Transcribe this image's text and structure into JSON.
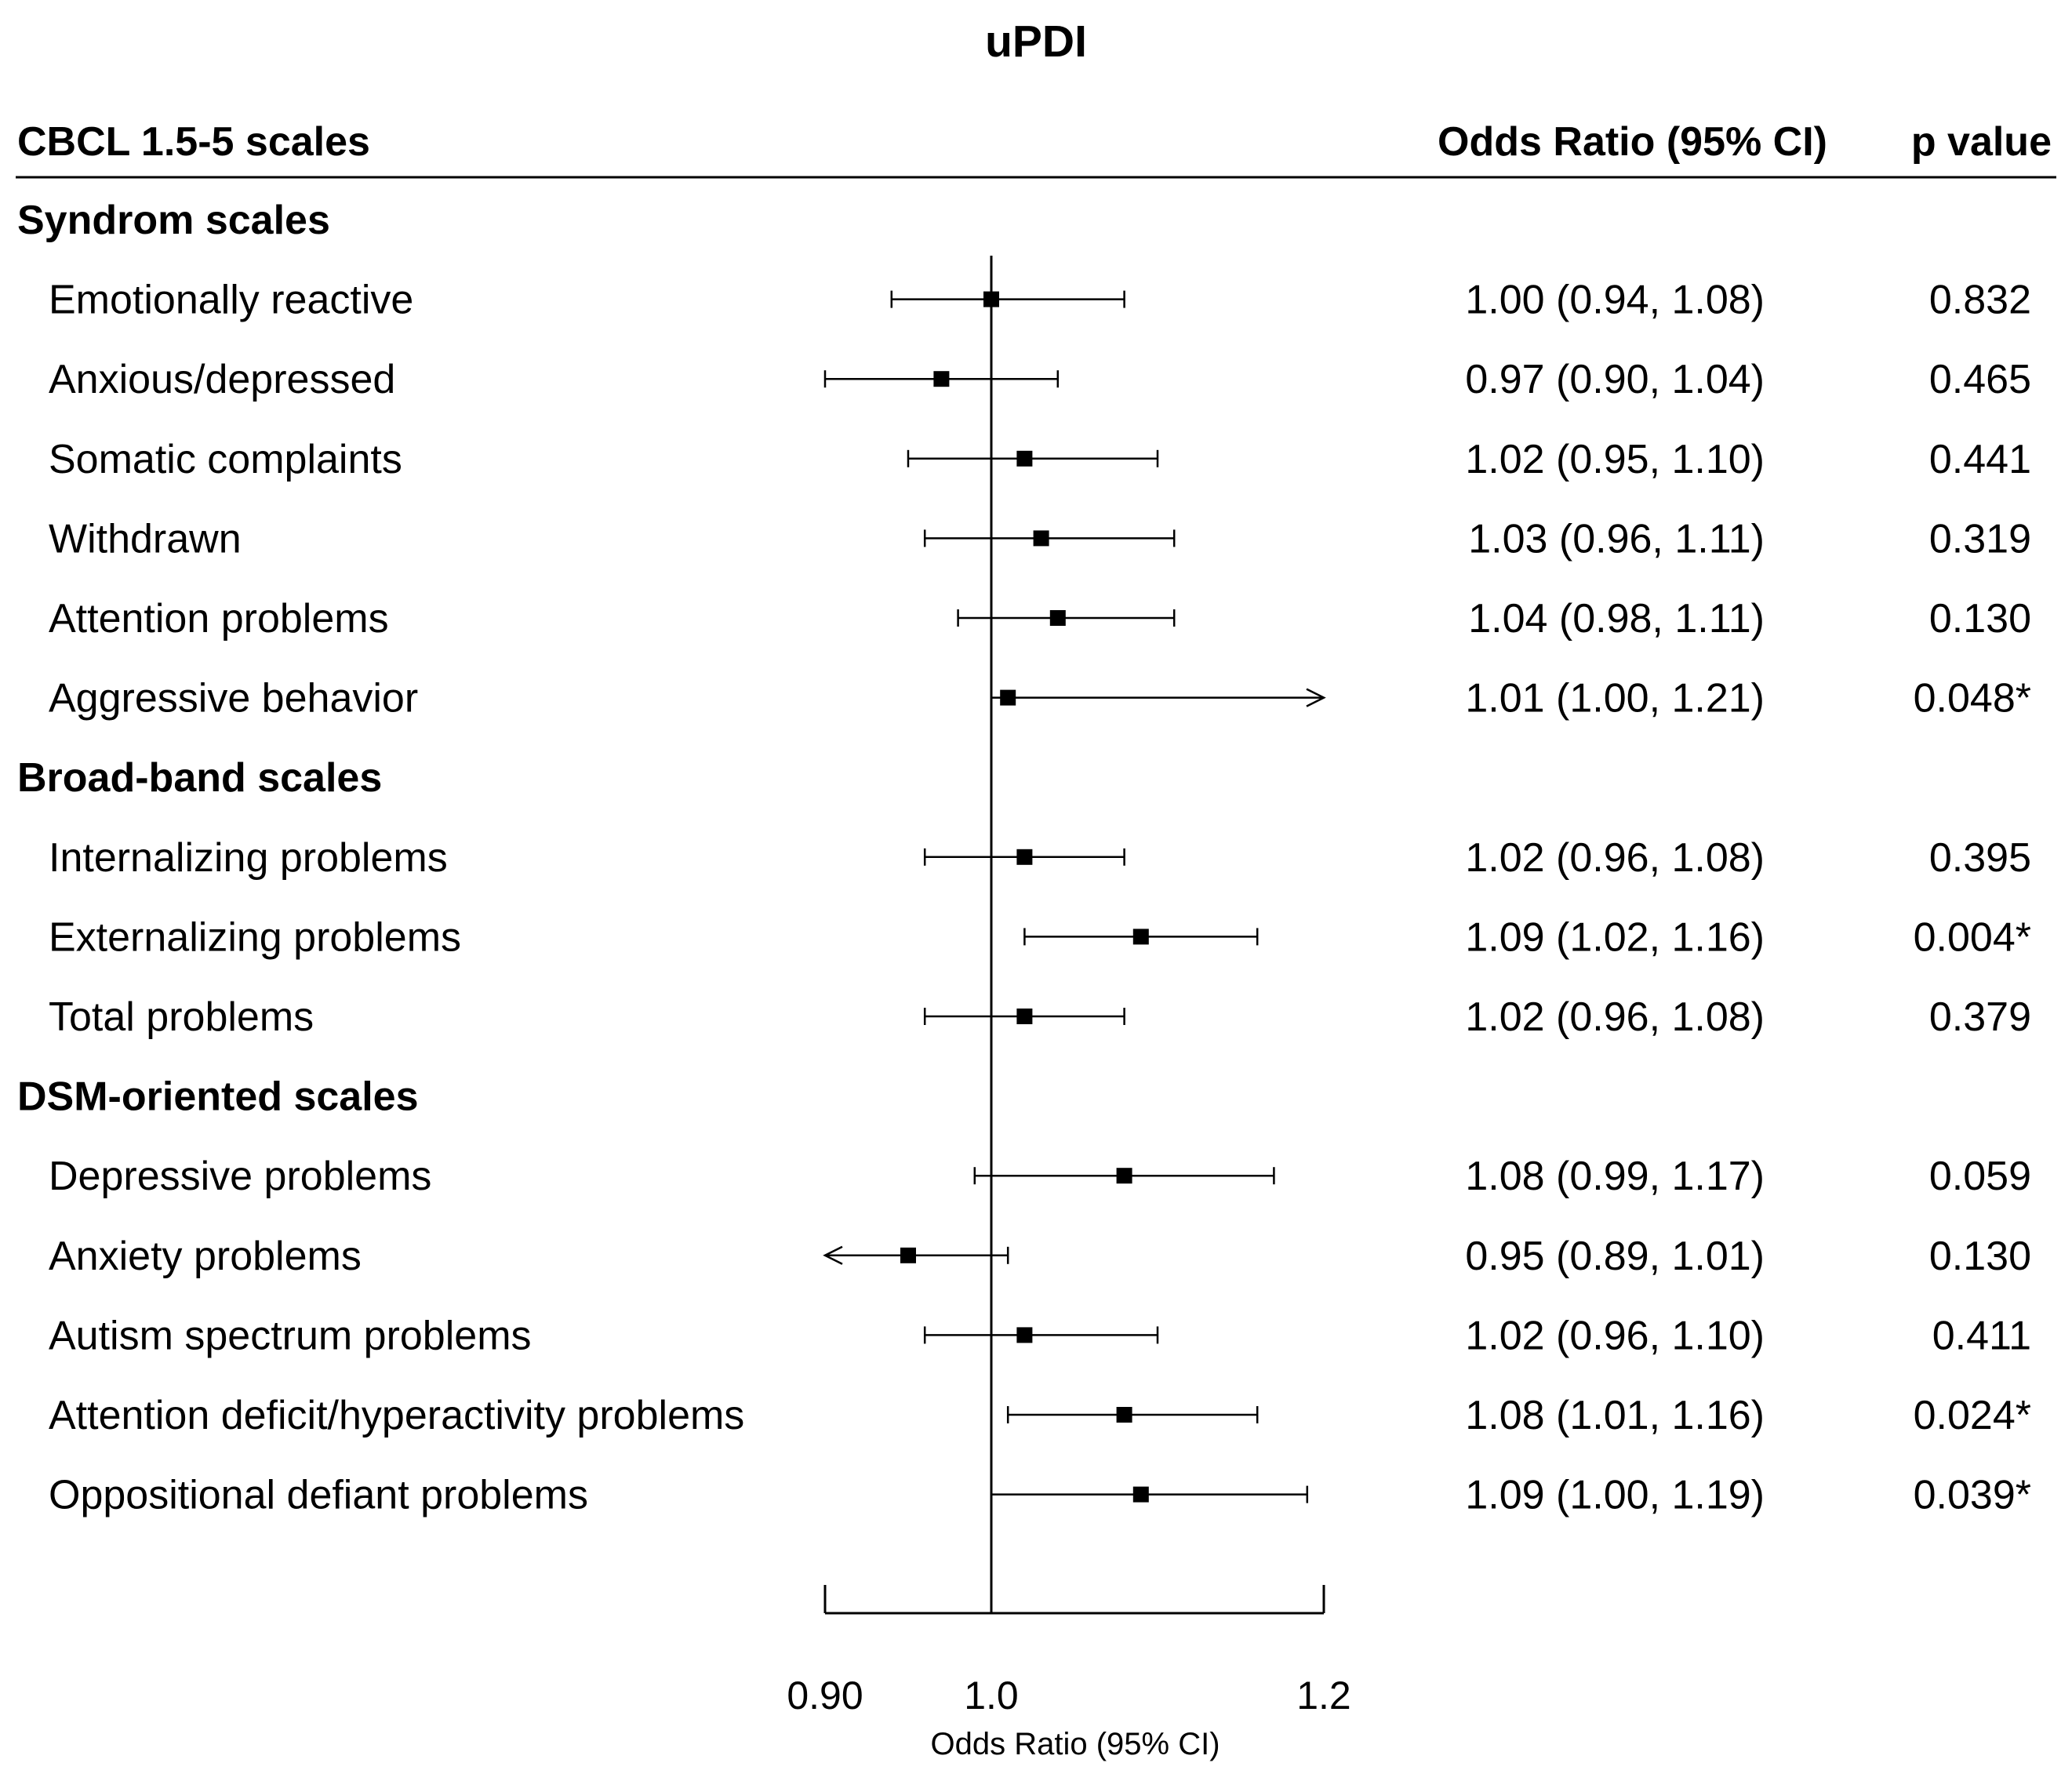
{
  "chart_data": {
    "type": "forest",
    "title": "uPDI",
    "headers": {
      "label": "CBCL 1.5-5 scales",
      "or": "Odds Ratio (95% CI)",
      "p": "p value"
    },
    "xlabel": "Odds Ratio (95% CI)",
    "xlim": [
      0.9,
      1.2
    ],
    "reference_line": 1.0,
    "x_ticks": [
      {
        "value": 0.9,
        "label": "0.90"
      },
      {
        "value": 1.0,
        "label": "1.0"
      },
      {
        "value": 1.2,
        "label": "1.2"
      }
    ],
    "sections": [
      {
        "name": "Syndrom scales",
        "rows": [
          {
            "label": "Emotionally reactive",
            "or": 1.0,
            "lo": 0.94,
            "hi": 1.08,
            "or_text": "1.00 (0.94, 1.08)",
            "p": "0.832",
            "arrow": ""
          },
          {
            "label": "Anxious/depressed",
            "or": 0.97,
            "lo": 0.9,
            "hi": 1.04,
            "or_text": "0.97 (0.90, 1.04)",
            "p": "0.465",
            "arrow": ""
          },
          {
            "label": "Somatic complaints",
            "or": 1.02,
            "lo": 0.95,
            "hi": 1.1,
            "or_text": "1.02 (0.95, 1.10)",
            "p": "0.441",
            "arrow": ""
          },
          {
            "label": "Withdrawn",
            "or": 1.03,
            "lo": 0.96,
            "hi": 1.11,
            "or_text": "1.03 (0.96, 1.11)",
            "p": "0.319",
            "arrow": ""
          },
          {
            "label": "Attention problems",
            "or": 1.04,
            "lo": 0.98,
            "hi": 1.11,
            "or_text": "1.04 (0.98, 1.11)",
            "p": "0.130",
            "arrow": ""
          },
          {
            "label": "Aggressive behavior",
            "or": 1.01,
            "lo": 1.0,
            "hi": 1.21,
            "or_text": "1.01 (1.00, 1.21)",
            "p": "0.048*",
            "arrow": "right"
          }
        ]
      },
      {
        "name": "Broad-band scales",
        "rows": [
          {
            "label": "Internalizing problems",
            "or": 1.02,
            "lo": 0.96,
            "hi": 1.08,
            "or_text": "1.02 (0.96, 1.08)",
            "p": "0.395",
            "arrow": ""
          },
          {
            "label": "Externalizing problems",
            "or": 1.09,
            "lo": 1.02,
            "hi": 1.16,
            "or_text": "1.09 (1.02, 1.16)",
            "p": "0.004*",
            "arrow": ""
          },
          {
            "label": "Total problems",
            "or": 1.02,
            "lo": 0.96,
            "hi": 1.08,
            "or_text": "1.02 (0.96, 1.08)",
            "p": "0.379",
            "arrow": ""
          }
        ]
      },
      {
        "name": "DSM-oriented scales",
        "rows": [
          {
            "label": "Depressive problems",
            "or": 1.08,
            "lo": 0.99,
            "hi": 1.17,
            "or_text": "1.08 (0.99, 1.17)",
            "p": "0.059",
            "arrow": ""
          },
          {
            "label": "Anxiety problems",
            "or": 0.95,
            "lo": 0.89,
            "hi": 1.01,
            "or_text": "0.95 (0.89, 1.01)",
            "p": "0.130",
            "arrow": "left"
          },
          {
            "label": "Autism spectrum problems",
            "or": 1.02,
            "lo": 0.96,
            "hi": 1.1,
            "or_text": "1.02 (0.96, 1.10)",
            "p": "0.411",
            "arrow": ""
          },
          {
            "label": "Attention deficit/hyperactivity problems",
            "or": 1.08,
            "lo": 1.01,
            "hi": 1.16,
            "or_text": "1.08 (1.01, 1.16)",
            "p": "0.024*",
            "arrow": ""
          },
          {
            "label": "Oppositional defiant problems",
            "or": 1.09,
            "lo": 1.0,
            "hi": 1.19,
            "or_text": "1.09 (1.00, 1.19)",
            "p": "0.039*",
            "arrow": ""
          }
        ]
      }
    ]
  }
}
